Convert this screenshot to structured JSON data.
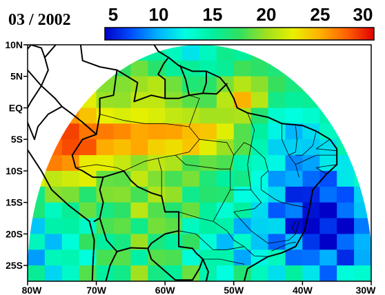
{
  "date_label": "03 / 2002",
  "colorbar": {
    "ticks": [
      "5",
      "10",
      "15",
      "20",
      "25",
      "30"
    ],
    "tick_values": [
      5,
      10,
      15,
      20,
      25,
      30
    ],
    "range": [
      5,
      30
    ],
    "colors": [
      "#0000c8",
      "#0050ff",
      "#00b4ff",
      "#00ffe0",
      "#00f0a0",
      "#30e060",
      "#a0e020",
      "#e8f000",
      "#ffb000",
      "#ff6000",
      "#e00000"
    ]
  },
  "map": {
    "lon_range": [
      -80,
      -30
    ],
    "lat_range": [
      -27.5,
      10
    ],
    "grid_step_deg": 2.5,
    "x_ticks": [
      "80W",
      "70W",
      "60W",
      "50W",
      "40W",
      "30W"
    ],
    "x_tick_values": [
      -80,
      -70,
      -60,
      -50,
      -40,
      -30
    ],
    "y_ticks": [
      "10N",
      "5N",
      "EQ",
      "5S",
      "10S",
      "15S",
      "20S",
      "25S"
    ],
    "y_tick_values": [
      10,
      5,
      0,
      -5,
      -10,
      -15,
      -20,
      -25
    ],
    "colors": {
      "frame": "#000000",
      "country_borders": "#000000",
      "state_borders": "#000000",
      "outside_domain": "#ffffff"
    }
  }
}
